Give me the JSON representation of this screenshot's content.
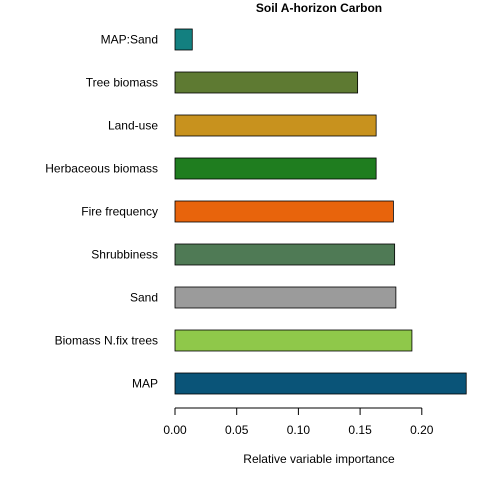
{
  "chart_data": {
    "type": "bar",
    "orientation": "horizontal",
    "title": "Soil A-horizon Carbon",
    "xlabel": "Relative variable importance",
    "ylabel": "",
    "xlim": [
      0,
      0.24
    ],
    "x_ticks": [
      "0.00",
      "0.05",
      "0.10",
      "0.15",
      "0.20"
    ],
    "grid": false,
    "categories": [
      "MAP:Sand",
      "Tree biomass",
      "Land-use",
      "Herbaceous biomass",
      "Fire frequency",
      "Shrubbiness",
      "Sand",
      "Biomass N.fix trees",
      "MAP"
    ],
    "values": [
      0.014,
      0.148,
      0.163,
      0.163,
      0.177,
      0.178,
      0.179,
      0.192,
      0.236
    ],
    "colors": [
      "#138080",
      "#5e7a32",
      "#c8921e",
      "#1f7d1f",
      "#e8640c",
      "#4f7a55",
      "#9b9b9b",
      "#8fc84a",
      "#0a5478"
    ]
  }
}
